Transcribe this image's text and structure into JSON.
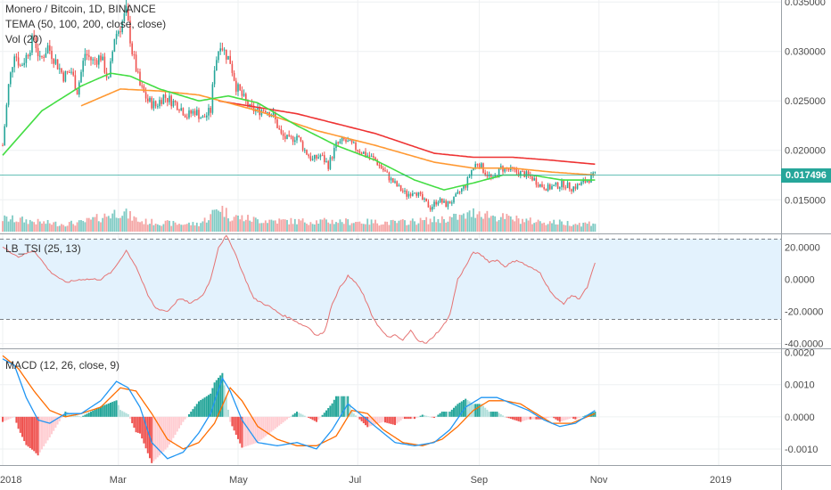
{
  "header": {
    "title": "Monero / Bitcoin, 1D, BINANCE",
    "indicator_tema": "TEMA (50, 100, 200, close, close)",
    "indicator_vol": "Vol (20)"
  },
  "tsi_panel": {
    "label": "LB_TSI (25, 13)"
  },
  "macd_panel": {
    "label": "MACD (12, 26, close, 9)"
  },
  "colors": {
    "up": "#26a69a",
    "down": "#ef5350",
    "vol_up": "#80cbc4",
    "vol_down": "#f4a4a3",
    "tema50": "#44dd44",
    "tema100": "#ff9933",
    "tema200": "#ee3333",
    "price_line": "#26a69a",
    "tsi_line": "#e57373",
    "tsi_band": "#e3f2fd",
    "macd_line": "#2196f3",
    "signal_line": "#ff6d00"
  },
  "chart_data": [
    {
      "type": "candlestick",
      "title": "Monero / Bitcoin, 1D, BINANCE",
      "x_ticks": [
        "2018",
        "Mar",
        "May",
        "Jul",
        "Sep",
        "Nov",
        "2019"
      ],
      "x_tick_days": [
        0,
        59,
        120,
        181,
        243,
        304,
        365
      ],
      "y_ticks": [
        "0.035000",
        "0.030000",
        "0.025000",
        "0.020000",
        "0.015000"
      ],
      "y_tick_values": [
        0.035,
        0.03,
        0.025,
        0.02,
        0.015
      ],
      "ylim": [
        0.0116,
        0.0352
      ],
      "last_price": "0.017496",
      "last_price_value": 0.017496,
      "close_path": [
        [
          0,
          0.0205
        ],
        [
          3,
          0.0265
        ],
        [
          6,
          0.03
        ],
        [
          9,
          0.0285
        ],
        [
          12,
          0.0295
        ],
        [
          16,
          0.0315
        ],
        [
          19,
          0.029
        ],
        [
          23,
          0.0305
        ],
        [
          27,
          0.029
        ],
        [
          31,
          0.0275
        ],
        [
          35,
          0.028
        ],
        [
          38,
          0.026
        ],
        [
          42,
          0.0298
        ],
        [
          46,
          0.029
        ],
        [
          50,
          0.0295
        ],
        [
          54,
          0.027
        ],
        [
          57,
          0.0315
        ],
        [
          60,
          0.0325
        ],
        [
          63,
          0.034
        ],
        [
          66,
          0.03
        ],
        [
          70,
          0.0265
        ],
        [
          74,
          0.025
        ],
        [
          78,
          0.0245
        ],
        [
          82,
          0.0255
        ],
        [
          86,
          0.025
        ],
        [
          90,
          0.0245
        ],
        [
          94,
          0.0235
        ],
        [
          98,
          0.024
        ],
        [
          102,
          0.0232
        ],
        [
          106,
          0.024
        ],
        [
          108,
          0.0285
        ],
        [
          111,
          0.031
        ],
        [
          113,
          0.03
        ],
        [
          116,
          0.029
        ],
        [
          119,
          0.0265
        ],
        [
          122,
          0.0255
        ],
        [
          126,
          0.0242
        ],
        [
          130,
          0.024
        ],
        [
          134,
          0.0242
        ],
        [
          138,
          0.0235
        ],
        [
          142,
          0.0215
        ],
        [
          146,
          0.021
        ],
        [
          150,
          0.0215
        ],
        [
          154,
          0.02
        ],
        [
          158,
          0.019
        ],
        [
          162,
          0.0195
        ],
        [
          166,
          0.0185
        ],
        [
          170,
          0.0205
        ],
        [
          174,
          0.021
        ],
        [
          178,
          0.0205
        ],
        [
          182,
          0.02
        ],
        [
          186,
          0.0195
        ],
        [
          190,
          0.019
        ],
        [
          194,
          0.018
        ],
        [
          198,
          0.017
        ],
        [
          202,
          0.0162
        ],
        [
          206,
          0.0155
        ],
        [
          210,
          0.016
        ],
        [
          214,
          0.015
        ],
        [
          218,
          0.0142
        ],
        [
          222,
          0.015
        ],
        [
          226,
          0.0145
        ],
        [
          230,
          0.015
        ],
        [
          233,
          0.0158
        ],
        [
          236,
          0.0165
        ],
        [
          239,
          0.018
        ],
        [
          242,
          0.0188
        ],
        [
          246,
          0.0178
        ],
        [
          250,
          0.017
        ],
        [
          254,
          0.0182
        ],
        [
          258,
          0.018
        ],
        [
          262,
          0.0178
        ],
        [
          266,
          0.0176
        ],
        [
          270,
          0.0172
        ],
        [
          274,
          0.0165
        ],
        [
          278,
          0.0162
        ],
        [
          282,
          0.0164
        ],
        [
          286,
          0.0166
        ],
        [
          290,
          0.0162
        ],
        [
          294,
          0.0165
        ],
        [
          298,
          0.017
        ],
        [
          302,
          0.0175
        ]
      ],
      "tema50_path": [
        [
          0,
          0.0195
        ],
        [
          20,
          0.024
        ],
        [
          40,
          0.0265
        ],
        [
          55,
          0.0278
        ],
        [
          65,
          0.0275
        ],
        [
          80,
          0.0262
        ],
        [
          100,
          0.025
        ],
        [
          115,
          0.0255
        ],
        [
          130,
          0.0248
        ],
        [
          150,
          0.0225
        ],
        [
          170,
          0.0205
        ],
        [
          190,
          0.019
        ],
        [
          210,
          0.017
        ],
        [
          225,
          0.016
        ],
        [
          240,
          0.0167
        ],
        [
          255,
          0.0175
        ],
        [
          270,
          0.0175
        ],
        [
          285,
          0.017
        ],
        [
          302,
          0.017
        ]
      ],
      "tema100_path": [
        [
          40,
          0.0245
        ],
        [
          60,
          0.0262
        ],
        [
          80,
          0.026
        ],
        [
          100,
          0.0256
        ],
        [
          130,
          0.024
        ],
        [
          160,
          0.022
        ],
        [
          190,
          0.0205
        ],
        [
          220,
          0.0188
        ],
        [
          240,
          0.0182
        ],
        [
          260,
          0.0182
        ],
        [
          280,
          0.0178
        ],
        [
          302,
          0.0175
        ]
      ],
      "tema200_path": [
        [
          110,
          0.025
        ],
        [
          150,
          0.0237
        ],
        [
          190,
          0.0217
        ],
        [
          220,
          0.0197
        ],
        [
          240,
          0.0193
        ],
        [
          260,
          0.0193
        ],
        [
          280,
          0.019
        ],
        [
          302,
          0.0186
        ]
      ],
      "volume_path": [
        [
          0,
          0.5
        ],
        [
          10,
          0.45
        ],
        [
          20,
          0.35
        ],
        [
          30,
          0.3
        ],
        [
          40,
          0.35
        ],
        [
          50,
          0.55
        ],
        [
          60,
          0.8
        ],
        [
          70,
          0.4
        ],
        [
          80,
          0.35
        ],
        [
          90,
          0.3
        ],
        [
          100,
          0.3
        ],
        [
          106,
          0.6
        ],
        [
          110,
          1.0
        ],
        [
          116,
          0.6
        ],
        [
          130,
          0.45
        ],
        [
          150,
          0.4
        ],
        [
          170,
          0.4
        ],
        [
          200,
          0.35
        ],
        [
          220,
          0.45
        ],
        [
          236,
          0.6
        ],
        [
          242,
          0.8
        ],
        [
          250,
          0.6
        ],
        [
          270,
          0.4
        ],
        [
          285,
          0.35
        ],
        [
          295,
          0.3
        ],
        [
          302,
          0.35
        ]
      ]
    },
    {
      "type": "line",
      "title": "LB_TSI (25, 13)",
      "y_ticks": [
        "20.0000",
        "0.0000",
        "-20.0000",
        "-40.0000"
      ],
      "y_tick_values": [
        20,
        0,
        -20,
        -40
      ],
      "ylim": [
        -43,
        28
      ],
      "band": [
        -25,
        25
      ],
      "series_path": [
        [
          0,
          20
        ],
        [
          8,
          14
        ],
        [
          16,
          18
        ],
        [
          24,
          5
        ],
        [
          32,
          -2
        ],
        [
          40,
          0
        ],
        [
          50,
          0
        ],
        [
          56,
          5
        ],
        [
          63,
          18
        ],
        [
          68,
          8
        ],
        [
          74,
          -10
        ],
        [
          78,
          -18
        ],
        [
          84,
          -20
        ],
        [
          90,
          -12
        ],
        [
          96,
          -15
        ],
        [
          102,
          -10
        ],
        [
          106,
          0
        ],
        [
          110,
          20
        ],
        [
          114,
          27
        ],
        [
          118,
          18
        ],
        [
          122,
          5
        ],
        [
          128,
          -12
        ],
        [
          136,
          -17
        ],
        [
          142,
          -22
        ],
        [
          148,
          -25
        ],
        [
          152,
          -28
        ],
        [
          156,
          -30
        ],
        [
          160,
          -35
        ],
        [
          164,
          -33
        ],
        [
          168,
          -15
        ],
        [
          172,
          -5
        ],
        [
          176,
          2
        ],
        [
          180,
          -2
        ],
        [
          184,
          -10
        ],
        [
          188,
          -22
        ],
        [
          192,
          -30
        ],
        [
          196,
          -36
        ],
        [
          200,
          -35
        ],
        [
          204,
          -38
        ],
        [
          208,
          -32
        ],
        [
          212,
          -38
        ],
        [
          216,
          -40
        ],
        [
          220,
          -35
        ],
        [
          224,
          -30
        ],
        [
          228,
          -22
        ],
        [
          232,
          0
        ],
        [
          236,
          8
        ],
        [
          240,
          17
        ],
        [
          244,
          15
        ],
        [
          248,
          11
        ],
        [
          252,
          12
        ],
        [
          256,
          8
        ],
        [
          262,
          12
        ],
        [
          268,
          8
        ],
        [
          274,
          4
        ],
        [
          278,
          -5
        ],
        [
          282,
          -12
        ],
        [
          286,
          -15
        ],
        [
          290,
          -10
        ],
        [
          294,
          -12
        ],
        [
          298,
          -5
        ],
        [
          302,
          10
        ]
      ]
    },
    {
      "type": "line",
      "title": "MACD (12, 26, close, 9)",
      "y_ticks": [
        "0.0020",
        "0.0010",
        "0.0000",
        "-0.0010"
      ],
      "y_tick_values": [
        0.002,
        0.001,
        0.0,
        -0.001
      ],
      "ylim": [
        -0.0015,
        0.0021
      ],
      "series": [
        {
          "name": "macd",
          "values": [
            [
              0,
              0.0018
            ],
            [
              6,
              0.0016
            ],
            [
              12,
              0.0006
            ],
            [
              18,
              -0.0001
            ],
            [
              24,
              -0.0002
            ],
            [
              32,
              0.0001
            ],
            [
              40,
              0.0001
            ],
            [
              50,
              0.0005
            ],
            [
              58,
              0.0011
            ],
            [
              64,
              0.0009
            ],
            [
              70,
              0.0003
            ],
            [
              76,
              -0.0008
            ],
            [
              84,
              -0.0013
            ],
            [
              92,
              -0.0011
            ],
            [
              100,
              -0.0005
            ],
            [
              106,
              0.0001
            ],
            [
              112,
              0.0012
            ],
            [
              116,
              0.0008
            ],
            [
              122,
              -0.0001
            ],
            [
              130,
              -0.0008
            ],
            [
              140,
              -0.0009
            ],
            [
              150,
              -0.0008
            ],
            [
              160,
              -0.001
            ],
            [
              168,
              -0.0004
            ],
            [
              176,
              0.0004
            ],
            [
              182,
              0.0001
            ],
            [
              192,
              -0.0004
            ],
            [
              200,
              -0.0008
            ],
            [
              210,
              -0.0009
            ],
            [
              220,
              -0.0008
            ],
            [
              228,
              -0.0004
            ],
            [
              236,
              0.0003
            ],
            [
              244,
              0.0006
            ],
            [
              252,
              0.0006
            ],
            [
              260,
              0.0004
            ],
            [
              268,
              0.0002
            ],
            [
              276,
              -0.0001
            ],
            [
              284,
              -0.0003
            ],
            [
              292,
              -0.0002
            ],
            [
              302,
              0.0002
            ]
          ]
        },
        {
          "name": "signal",
          "values": [
            [
              0,
              0.0019
            ],
            [
              8,
              0.0015
            ],
            [
              16,
              0.0008
            ],
            [
              24,
              0.0002
            ],
            [
              32,
              0.0
            ],
            [
              40,
              0.0001
            ],
            [
              50,
              0.0003
            ],
            [
              60,
              0.0009
            ],
            [
              68,
              0.0008
            ],
            [
              76,
              0.0001
            ],
            [
              84,
              -0.0007
            ],
            [
              92,
              -0.001
            ],
            [
              100,
              -0.0008
            ],
            [
              108,
              -0.0002
            ],
            [
              116,
              0.0009
            ],
            [
              122,
              0.0005
            ],
            [
              130,
              -0.0003
            ],
            [
              140,
              -0.0007
            ],
            [
              150,
              -0.0009
            ],
            [
              160,
              -0.0009
            ],
            [
              170,
              -0.0006
            ],
            [
              178,
              0.0002
            ],
            [
              186,
              0.0001
            ],
            [
              194,
              -0.0004
            ],
            [
              204,
              -0.0008
            ],
            [
              214,
              -0.0009
            ],
            [
              224,
              -0.0007
            ],
            [
              232,
              -0.0003
            ],
            [
              240,
              0.0002
            ],
            [
              248,
              0.0005
            ],
            [
              256,
              0.0005
            ],
            [
              264,
              0.0004
            ],
            [
              272,
              0.0001
            ],
            [
              280,
              -0.0002
            ],
            [
              290,
              -0.0002
            ],
            [
              302,
              0.0001
            ]
          ]
        }
      ]
    }
  ]
}
